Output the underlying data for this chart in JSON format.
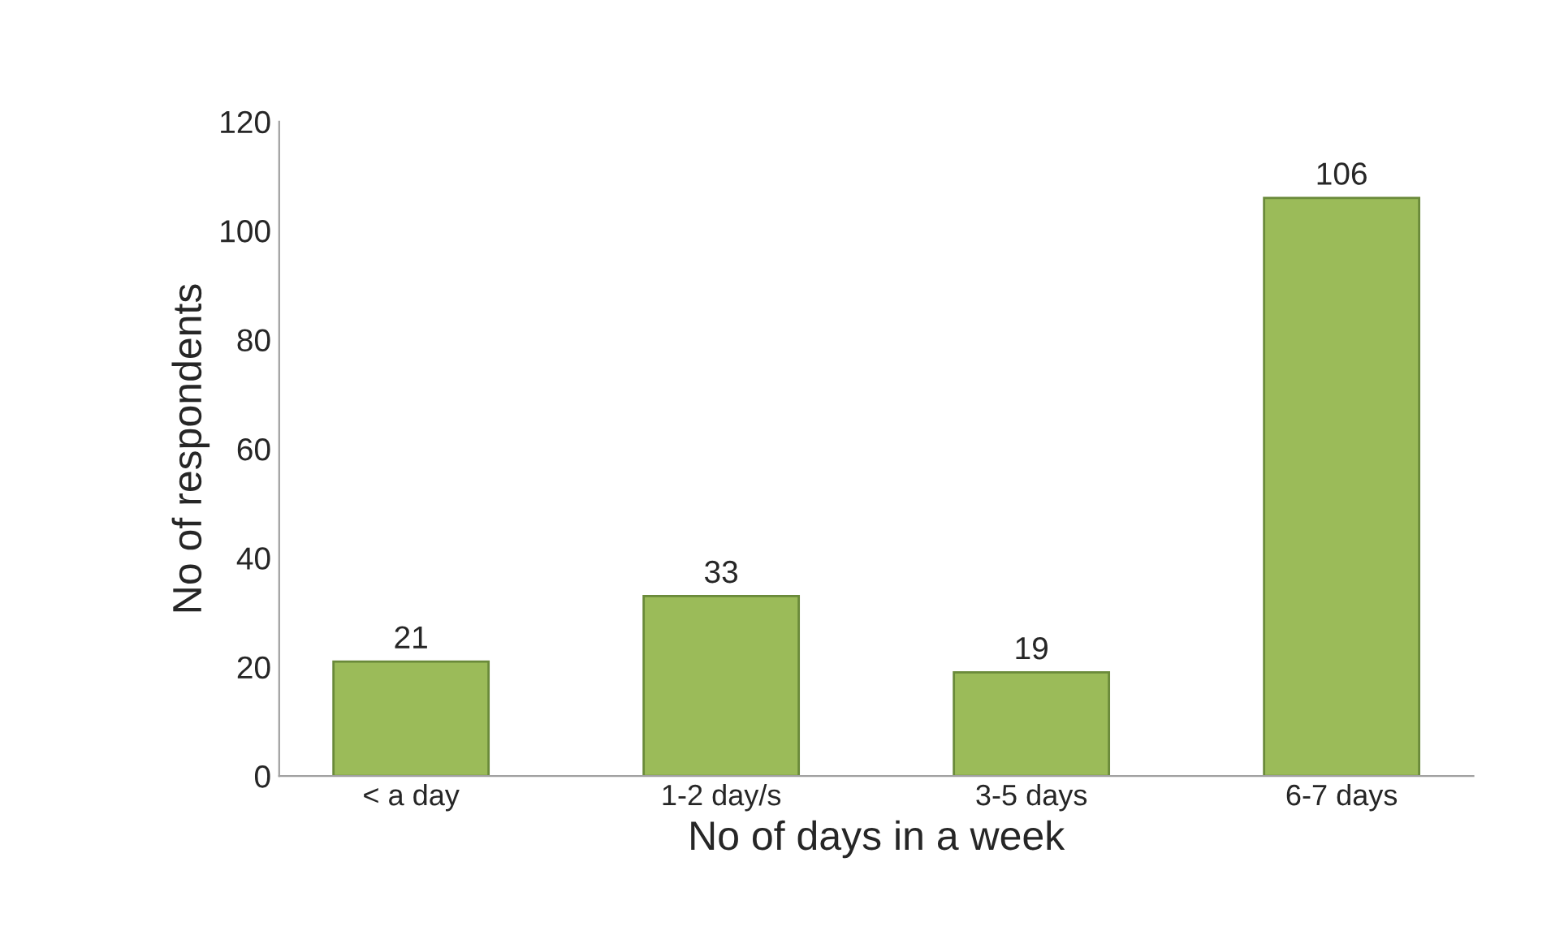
{
  "chart_data": {
    "type": "bar",
    "xlabel": "No of days in a week",
    "ylabel": "No of respondents",
    "categories": [
      "< a day",
      "1-2 day/s",
      "3-5 days",
      "6-7 days"
    ],
    "values": [
      21,
      33,
      19,
      106
    ],
    "color": "#9bbb59",
    "ylim": [
      0,
      120
    ],
    "yticks": [
      0,
      20,
      40,
      60,
      80,
      100,
      120
    ],
    "grid": false,
    "data_labels": true
  }
}
